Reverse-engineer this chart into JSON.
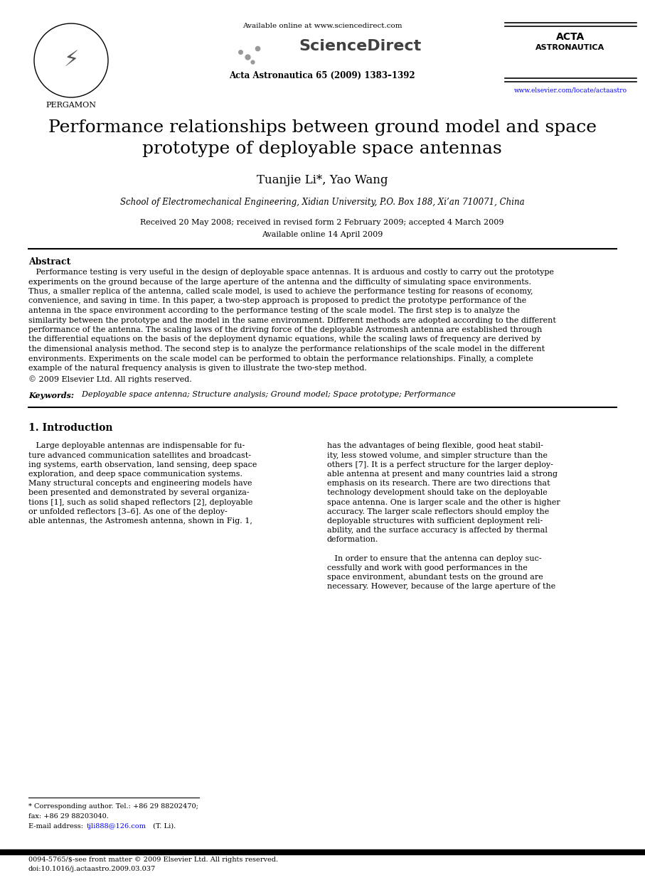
{
  "fig_width": 9.07,
  "fig_height": 12.38,
  "bg_color": "#ffffff",
  "title_line1": "Performance relationships between ground model and space",
  "title_line2": "prototype of deployable space antennas",
  "authors": "Tuanjie Li*, Yao Wang",
  "affiliation": "School of Electromechanical Engineering, Xidian University, P.O. Box 188, Xi’an 710071, China",
  "received": "Received 20 May 2008; received in revised form 2 February 2009; accepted 4 March 2009",
  "available": "Available online 14 April 2009",
  "journal": "Acta Astronautica 65 (2009) 1383–1392",
  "available_online_text": "Available online at www.sciencedirect.com",
  "pergamon": "PERGAMON",
  "journal_url": "www.elsevier.com/locate/actaastro",
  "abstract_title": "Abstract",
  "abstract_text": "   Performance testing is very useful in the design of deployable space antennas. It is arduous and costly to carry out the prototype\nexperiments on the ground because of the large aperture of the antenna and the difficulty of simulating space environments.\nThus, a smaller replica of the antenna, called scale model, is used to achieve the performance testing for reasons of economy,\nconvenience, and saving in time. In this paper, a two-step approach is proposed to predict the prototype performance of the\nantenna in the space environment according to the performance testing of the scale model. The first step is to analyze the\nsimilarity between the prototype and the model in the same environment. Different methods are adopted according to the different\nperformance of the antenna. The scaling laws of the driving force of the deployable Astromesh antenna are established through\nthe differential equations on the basis of the deployment dynamic equations, while the scaling laws of frequency are derived by\nthe dimensional analysis method. The second step is to analyze the performance relationships of the scale model in the different\nenvironments. Experiments on the scale model can be performed to obtain the performance relationships. Finally, a complete\nexample of the natural frequency analysis is given to illustrate the two-step method.",
  "copyright": "© 2009 Elsevier Ltd. All rights reserved.",
  "keywords_label": "Keywords:",
  "keywords_text": "  Deployable space antenna; Structure analysis; Ground model; Space prototype; Performance",
  "intro_heading": "1. Introduction",
  "intro_col1_lines": [
    "   Large deployable antennas are indispensable for fu-",
    "ture advanced communication satellites and broadcast-",
    "ing systems, earth observation, land sensing, deep space",
    "exploration, and deep space communication systems.",
    "Many structural concepts and engineering models have",
    "been presented and demonstrated by several organiza-",
    "tions [1], such as solid shaped reflectors [2], deployable",
    "or unfolded reflectors [3–6]. As one of the deploy-",
    "able antennas, the Astromesh antenna, shown in Fig. 1,"
  ],
  "intro_col2_lines": [
    "has the advantages of being flexible, good heat stabil-",
    "ity, less stowed volume, and simpler structure than the",
    "others [7]. It is a perfect structure for the larger deploy-",
    "able antenna at present and many countries laid a strong",
    "emphasis on its research. There are two directions that",
    "technology development should take on the deployable",
    "space antenna. One is larger scale and the other is higher",
    "accuracy. The larger scale reflectors should employ the",
    "deployable structures with sufficient deployment reli-",
    "ability, and the surface accuracy is affected by thermal",
    "deformation.",
    "",
    "   In order to ensure that the antenna can deploy suc-",
    "cessfully and work with good performances in the",
    "space environment, abundant tests on the ground are",
    "necessary. However, because of the large aperture of the"
  ],
  "footnote_star": "* Corresponding author. Tel.: +86 29 88202470;",
  "footnote_fax": "fax: +86 29 88203040.",
  "footnote_email_label": "E-mail address: ",
  "footnote_email_link": "tjli888@126.com",
  "footnote_email_rest": " (T. Li).",
  "bottom_bar": "0094-5765/$-see front matter © 2009 Elsevier Ltd. All rights reserved.",
  "bottom_doi": "doi:10.1016/j.actaastro.2009.03.037"
}
